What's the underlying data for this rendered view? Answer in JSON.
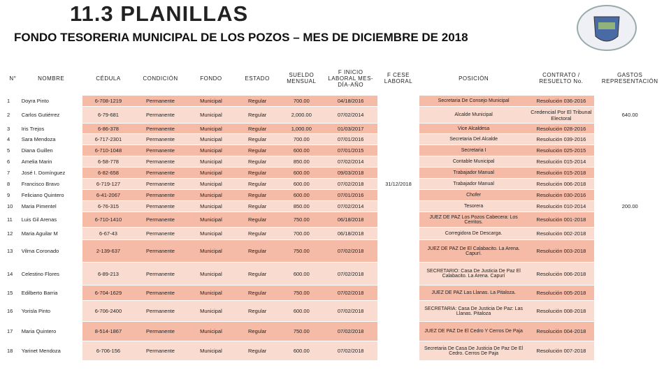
{
  "header": {
    "title": "11.3 PLANILLAS",
    "subtitle": "FONDO TESORERIA MUNICIPAL DE LOS POZOS – MES DE DICIEMBRE DE 2018"
  },
  "table": {
    "columns": [
      "N°",
      "NOMBRE",
      "CÉDULA",
      "CONDICIÓN",
      "FONDO",
      "ESTADO",
      "SUELDO MENSUAL",
      "F INICIO LABORAL MES-DÍA-AÑO",
      "F CESE LABORAL",
      "POSICIÓN",
      "CONTRATO / RESUELTO No.",
      "GASTOS REPRESENTACIÓN"
    ],
    "rows": [
      [
        "1",
        "Doyra Pinto",
        "6-708-1219",
        "Permanente",
        "Municipal",
        "Regular",
        "700.00",
        "04/18/2016",
        null,
        "Secretaria De Consejo Municipal",
        "Resolución 036-2016",
        null
      ],
      [
        "2",
        "Carlos Gutiérrez",
        "6-79-681",
        "Permanente",
        "Municipal",
        "Regular",
        "2,000.00",
        "07/02/2014",
        null,
        "Alcalde Municipal",
        "Credencial Por El Tribunal Electoral",
        "640.00"
      ],
      [
        "3",
        "Iris Trejos",
        "6-86-378",
        "Permanente",
        "Municipal",
        "Regular",
        "1,000.00",
        "01/03/2017",
        null,
        "Vice Alcaldesa",
        "Resolución 028-2016",
        null
      ],
      [
        "4",
        "Sara Mendoza",
        "6-717-2301",
        "Permanente",
        "Municipal",
        "Regular",
        "700.00",
        "07/01/2016",
        null,
        "Secretaria Del Alcalde",
        "Resolución 039-2016",
        null
      ],
      [
        "5",
        "Diana Guillen",
        "6-710-1048",
        "Permanente",
        "Municipal",
        "Regular",
        "600.00",
        "07/01/2015",
        null,
        "Secretaria I",
        "Resolución 025-2015",
        null
      ],
      [
        "6",
        "Amelia Marin",
        "6-58-778",
        "Permanente",
        "Municipal",
        "Regular",
        "850.00",
        "07/02/2014",
        null,
        "Contable Municipal",
        "Resolución 015-2014",
        null
      ],
      [
        "7",
        "José I. Domínguez",
        "6-82-658",
        "Permanente",
        "Municipal",
        "Regular",
        "600.00",
        "09/03/2018",
        null,
        "Trabajador Manual",
        "Resolución 015-2018",
        null
      ],
      [
        "8",
        "Francisco Bravo",
        "6-719-127",
        "Permanente",
        "Municipal",
        "Regular",
        "600.00",
        "07/02/2018",
        "31/12/2018",
        "Trabajador Manual",
        "Resolución 006-2018",
        null
      ],
      [
        "9",
        "Feliciano Quintero",
        "6-41-2067",
        "Permanente",
        "Municipal",
        "Regular",
        "600.00",
        "07/01/2016",
        null,
        "Chofer",
        "Resolución 030-2016",
        null
      ],
      [
        "10",
        "Maria Pimentel",
        "6-76-315",
        "Permanente",
        "Municipal",
        "Regular",
        "850.00",
        "07/02/2014",
        null,
        "Tesorera",
        "Resolución 010-2014",
        "200.00"
      ],
      [
        "11",
        "Luis Gil Arenas",
        "6-710-1410",
        "Permanente",
        "Municipal",
        "Regular",
        "750.00",
        "06/18/2018",
        null,
        "JUEZ DE PAZ Los Pozos Cabecera: Los Cerritos.",
        "Resolución 001-2018",
        null
      ],
      [
        "12",
        "Maria Aguilar M",
        "6-67-43",
        "Permanente",
        "Municipal",
        "Regular",
        "700.00",
        "06/18/2018",
        null,
        "Corregidora De Descarga.",
        "Resolución 002-2018",
        null
      ],
      [
        "13",
        "Vilma Coronado",
        "2-139-637",
        "Permanente",
        "Municipal",
        "Regular",
        "750.00",
        "07/02/2018",
        null,
        "JUEZ DE PAZ De El Calabacito. La Arena. Capurí.",
        "Resolución 003-2018",
        null
      ],
      [
        "14",
        "Celestino Flores",
        "6-89-213",
        "Permanente",
        "Municipal",
        "Regular",
        "600.00",
        "07/02/2018",
        null,
        "SECRETARIO: Casa De Justicia De Paz El Calabacito. La Arena. Capurí",
        "Resolución 006-2018",
        null
      ],
      [
        "15",
        "Edilberto Barria",
        "6-704-1629",
        "Permanente",
        "Municipal",
        "Regular",
        "750.00",
        "07/02/2018",
        null,
        "JUEZ DE PAZ Las Llanas. La Pitaloza.",
        "Resolución 005-2018",
        null
      ],
      [
        "16",
        "Yorisla Pinto",
        "6-706-2400",
        "Permanente",
        "Municipal",
        "Regular",
        "600.00",
        "07/02/2018",
        null,
        "SECRETARIA: Casa De Justicia De Paz: Las Llanas. Pitaloza",
        "Resolución 008-2018",
        null
      ],
      [
        "17",
        "Maria Quintero",
        "8-514-1867",
        "Permanente",
        "Municipal",
        "Regular",
        "750.00",
        "07/02/2018",
        null,
        "JUEZ DE PAZ De El Cedro Y Cerros De Paja",
        "Resolución 004-2018",
        null
      ],
      [
        "18",
        "Yarinet Mendoza",
        "6-706-156",
        "Permanente",
        "Municipal",
        "Regular",
        "600.00",
        "07/02/2018",
        null,
        "Secretaria De Casa De Justicia De Paz De El Cedro. Cerros De Paja",
        "Resolución 007-2018",
        null
      ]
    ]
  }
}
